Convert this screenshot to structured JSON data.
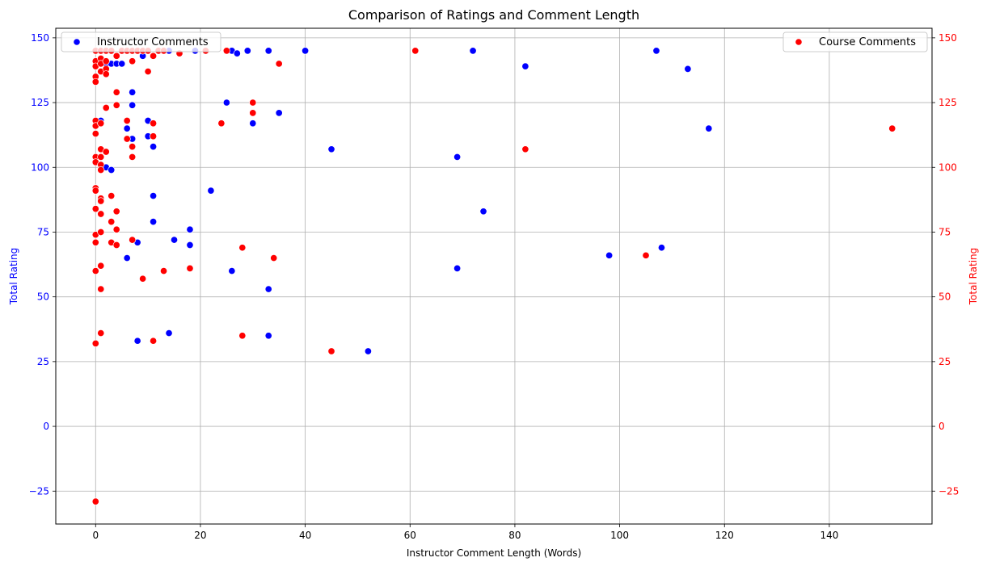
{
  "chart_data": {
    "type": "scatter",
    "title": "Comparison of Ratings and Comment Length",
    "xlabel": "Instructor Comment Length (Words)",
    "ylabel_left": "Total Rating",
    "ylabel_right": "Total Rating",
    "xlim": [
      -7.6,
      159.6
    ],
    "ylim": [
      -37.7,
      153.7
    ],
    "x_ticks": [
      "0",
      "20",
      "40",
      "60",
      "80",
      "100",
      "120",
      "140"
    ],
    "y_ticks": [
      "−25",
      "0",
      "25",
      "50",
      "75",
      "100",
      "125",
      "150"
    ],
    "grid": true,
    "colors": {
      "left_axis": "#0000ff",
      "right_axis": "#ff0000",
      "grid": "#b0b0b0"
    },
    "series": [
      {
        "name": "Instructor Comments",
        "color": "#0000ff",
        "axis": "left",
        "legend_position": "upper left",
        "points": [
          [
            0,
            102
          ],
          [
            1,
            117
          ],
          [
            1,
            118
          ],
          [
            2,
            100
          ],
          [
            2,
            140
          ],
          [
            3,
            99
          ],
          [
            3,
            140
          ],
          [
            4,
            140
          ],
          [
            5,
            140
          ],
          [
            6,
            65
          ],
          [
            6,
            115
          ],
          [
            7,
            111
          ],
          [
            7,
            124
          ],
          [
            7,
            129
          ],
          [
            8,
            33
          ],
          [
            8,
            71
          ],
          [
            9,
            143
          ],
          [
            10,
            112
          ],
          [
            10,
            118
          ],
          [
            11,
            79
          ],
          [
            11,
            89
          ],
          [
            11,
            108
          ],
          [
            14,
            36
          ],
          [
            14,
            145
          ],
          [
            15,
            72
          ],
          [
            18,
            70
          ],
          [
            18,
            76
          ],
          [
            19,
            145
          ],
          [
            21,
            145
          ],
          [
            22,
            91
          ],
          [
            25,
            125
          ],
          [
            26,
            60
          ],
          [
            26,
            145
          ],
          [
            27,
            144
          ],
          [
            29,
            145
          ],
          [
            30,
            117
          ],
          [
            33,
            35
          ],
          [
            33,
            53
          ],
          [
            33,
            145
          ],
          [
            35,
            121
          ],
          [
            40,
            145
          ],
          [
            45,
            107
          ],
          [
            52,
            29
          ],
          [
            69,
            61
          ],
          [
            69,
            104
          ],
          [
            72,
            145
          ],
          [
            74,
            83
          ],
          [
            82,
            139
          ],
          [
            98,
            66
          ],
          [
            107,
            145
          ],
          [
            108,
            69
          ],
          [
            113,
            138
          ],
          [
            117,
            115
          ]
        ]
      },
      {
        "name": "Course Comments",
        "color": "#ff0000",
        "axis": "right",
        "legend_position": "upper right",
        "points": [
          [
            0,
            145
          ],
          [
            0,
            141
          ],
          [
            0,
            139
          ],
          [
            0,
            135
          ],
          [
            0,
            133
          ],
          [
            0,
            118
          ],
          [
            0,
            116
          ],
          [
            0,
            113
          ],
          [
            0,
            104
          ],
          [
            0,
            102
          ],
          [
            0,
            92
          ],
          [
            0,
            91
          ],
          [
            0,
            84
          ],
          [
            0,
            74
          ],
          [
            0,
            71
          ],
          [
            0,
            60
          ],
          [
            0,
            32
          ],
          [
            0,
            -29
          ],
          [
            1,
            145
          ],
          [
            1,
            142
          ],
          [
            1,
            140
          ],
          [
            1,
            137
          ],
          [
            1,
            117
          ],
          [
            1,
            107
          ],
          [
            1,
            104
          ],
          [
            1,
            101
          ],
          [
            1,
            99
          ],
          [
            1,
            88
          ],
          [
            1,
            87
          ],
          [
            1,
            82
          ],
          [
            1,
            75
          ],
          [
            1,
            62
          ],
          [
            1,
            53
          ],
          [
            1,
            36
          ],
          [
            2,
            145
          ],
          [
            2,
            141
          ],
          [
            2,
            138
          ],
          [
            2,
            136
          ],
          [
            2,
            123
          ],
          [
            2,
            106
          ],
          [
            3,
            145
          ],
          [
            3,
            89
          ],
          [
            3,
            79
          ],
          [
            3,
            71
          ],
          [
            4,
            143
          ],
          [
            4,
            129
          ],
          [
            4,
            124
          ],
          [
            4,
            83
          ],
          [
            4,
            76
          ],
          [
            4,
            70
          ],
          [
            5,
            145
          ],
          [
            6,
            145
          ],
          [
            6,
            118
          ],
          [
            6,
            111
          ],
          [
            7,
            145
          ],
          [
            7,
            141
          ],
          [
            7,
            108
          ],
          [
            7,
            104
          ],
          [
            7,
            72
          ],
          [
            8,
            145
          ],
          [
            9,
            145
          ],
          [
            9,
            57
          ],
          [
            10,
            145
          ],
          [
            10,
            137
          ],
          [
            11,
            143
          ],
          [
            11,
            117
          ],
          [
            11,
            112
          ],
          [
            11,
            33
          ],
          [
            12,
            145
          ],
          [
            13,
            145
          ],
          [
            13,
            60
          ],
          [
            16,
            144
          ],
          [
            18,
            61
          ],
          [
            21,
            145
          ],
          [
            24,
            117
          ],
          [
            25,
            145
          ],
          [
            28,
            69
          ],
          [
            28,
            35
          ],
          [
            30,
            125
          ],
          [
            30,
            121
          ],
          [
            34,
            65
          ],
          [
            35,
            140
          ],
          [
            45,
            29
          ],
          [
            61,
            145
          ],
          [
            82,
            107
          ],
          [
            105,
            66
          ],
          [
            152,
            115
          ]
        ]
      }
    ]
  }
}
